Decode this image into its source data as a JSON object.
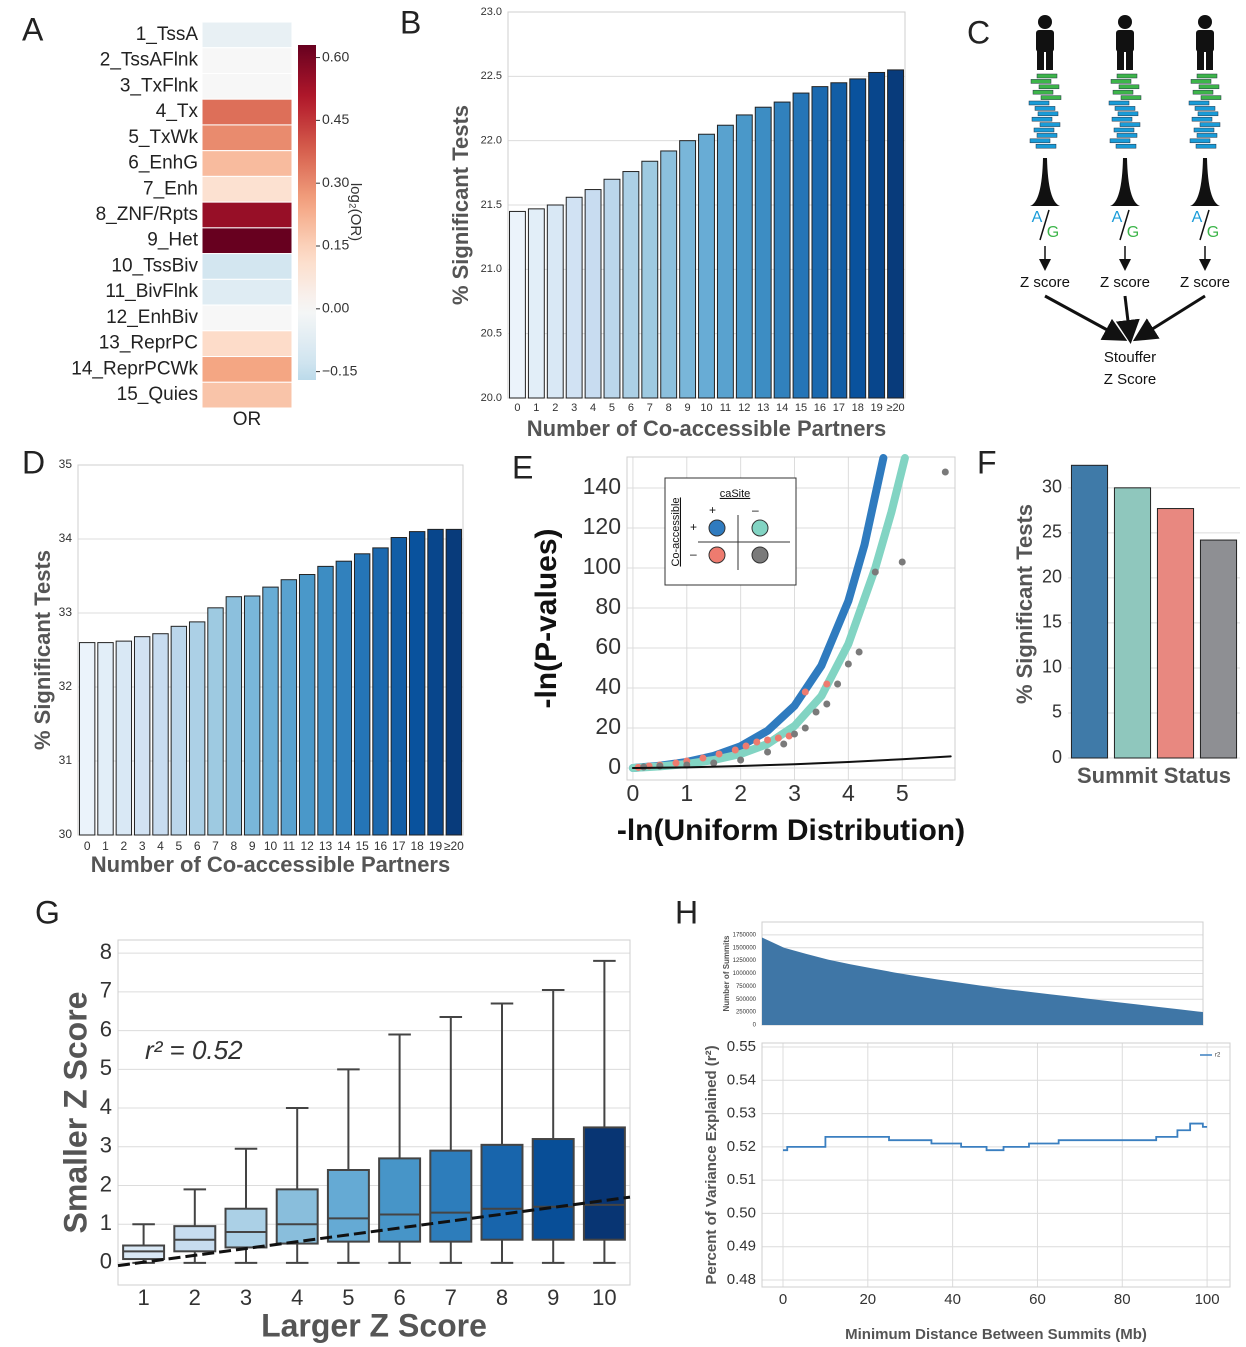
{
  "panel_labels": [
    "A",
    "B",
    "C",
    "D",
    "E",
    "F",
    "G",
    "H"
  ],
  "diagram": {
    "allele_1": "A",
    "allele_2": "G",
    "score_label": "Z score",
    "combined_label": [
      "Stouffer",
      "Z Score"
    ]
  },
  "chart_data": [
    {
      "type": "heatmap",
      "categories": [
        "1_TssA",
        "2_TssAFlnk",
        "3_TxFlnk",
        "4_Tx",
        "5_TxWk",
        "6_EnhG",
        "7_Enh",
        "8_ZNF/Rpts",
        "9_Het",
        "10_TssBiv",
        "11_BivFlnk",
        "12_EnhBiv",
        "13_ReprPC",
        "14_ReprPCWk",
        "15_Quies"
      ],
      "columns": [
        "OR"
      ],
      "values": [
        -0.05,
        0.0,
        0.0,
        0.35,
        0.3,
        0.2,
        0.1,
        0.55,
        0.65,
        -0.12,
        -0.08,
        0.0,
        0.12,
        0.25,
        0.18
      ],
      "colormap": "RdBu_r",
      "clim": [
        -0.17,
        0.63
      ],
      "cticks": [
        {
          "value": -0.15,
          "label": "−0.15"
        },
        {
          "value": 0,
          "label": "0.00"
        },
        0.15,
        {
          "value": 0.3,
          "label": "0.30"
        },
        0.45,
        {
          "value": 0.6,
          "label": "0.60"
        }
      ],
      "colorbar_label": "log₂(OR)"
    },
    {
      "type": "bar",
      "categories": [
        "0",
        "1",
        "2",
        "3",
        "4",
        "5",
        "6",
        "7",
        "8",
        "9",
        "10",
        "11",
        "12",
        "13",
        "14",
        "15",
        "16",
        "17",
        "18",
        "19",
        "≥20"
      ],
      "values": [
        21.45,
        21.47,
        21.5,
        21.56,
        21.62,
        21.7,
        21.76,
        21.84,
        21.92,
        22.0,
        22.05,
        22.12,
        22.2,
        22.26,
        22.3,
        22.37,
        22.42,
        22.45,
        22.48,
        22.53,
        22.55
      ],
      "colormap": "Blues",
      "ylim": [
        20,
        23
      ],
      "yticks": [
        {
          "value": 20,
          "label": "20.0"
        },
        20.5,
        {
          "value": 21,
          "label": "21.0"
        },
        21.5,
        {
          "value": 22,
          "label": "22.0"
        },
        22.5,
        {
          "value": 23,
          "label": "23.0"
        }
      ],
      "grid": true,
      "ylabel": "% Significant Tests",
      "xlabel": "Number of Co-accessible Partners"
    },
    {
      "type": "bar",
      "categories": [
        "0",
        "1",
        "2",
        "3",
        "4",
        "5",
        "6",
        "7",
        "8",
        "9",
        "10",
        "11",
        "12",
        "13",
        "14",
        "15",
        "16",
        "17",
        "18",
        "19",
        "≥20"
      ],
      "values": [
        32.6,
        32.6,
        32.62,
        32.68,
        32.72,
        32.82,
        32.88,
        33.07,
        33.22,
        33.23,
        33.35,
        33.45,
        33.52,
        33.63,
        33.7,
        33.8,
        33.88,
        34.02,
        34.1,
        34.13,
        34.13
      ],
      "colormap": "Blues",
      "ylim": [
        30,
        35
      ],
      "yticks": [
        30,
        31,
        32,
        33,
        34,
        35
      ],
      "grid": true,
      "ylabel": "% Significant Tests",
      "xlabel": "Number of Co-accessible Partners"
    },
    {
      "type": "scatter",
      "xlim": [
        -0.11,
        5.98
      ],
      "ylim": [
        -6,
        155.5
      ],
      "xticks": [
        0,
        1,
        2,
        3,
        4,
        5
      ],
      "yticks": [
        0,
        20,
        40,
        60,
        80,
        100,
        120,
        140
      ],
      "grid": true,
      "ylabel": "-ln(P-values)",
      "xlabel": "-ln(Uniform Distribution)",
      "legend": {
        "title_x": "caSite",
        "title_y": "Co-accessible",
        "x_labels": [
          "+",
          "–"
        ],
        "y_labels": [
          "+",
          "–"
        ]
      },
      "series": [
        {
          "color": "#2f7bbf",
          "mode": "lines",
          "linewidth": 8,
          "x": [
            0,
            0.5,
            1,
            1.5,
            2,
            2.5,
            3,
            3.5,
            4,
            4.3,
            4.65
          ],
          "values": [
            0,
            1.16,
            3.03,
            6.03,
            10.9,
            18.6,
            31.1,
            51.2,
            83.5,
            111.6,
            155
          ]
        },
        {
          "color": "#82d4c3",
          "mode": "lines",
          "linewidth": 8,
          "x": [
            0,
            0.5,
            1,
            1.5,
            2,
            2.5,
            3,
            3.5,
            4,
            4.5,
            4.8,
            5.05
          ],
          "values": [
            0,
            0.8,
            2,
            4,
            7,
            12,
            21,
            36,
            62,
            100,
            128,
            155
          ]
        },
        {
          "color": "#ee7b6f",
          "mode": "markers",
          "x": [
            0.1,
            0.3,
            0.5,
            0.8,
            1.0,
            1.3,
            1.6,
            1.9,
            2.1,
            2.3,
            2.5,
            2.7,
            2.9,
            3.2,
            3.6
          ],
          "values": [
            0.3,
            1,
            1.5,
            2.5,
            3.5,
            5,
            7,
            9,
            11,
            13,
            14,
            15,
            16,
            38,
            42
          ]
        },
        {
          "color": "#7a7a7a",
          "mode": "markers",
          "x": [
            0.2,
            0.5,
            1,
            1.5,
            2,
            2.5,
            2.8,
            3,
            3.2,
            3.4,
            3.6,
            3.8,
            4.0,
            4.2,
            4.5,
            5.0,
            5.8
          ],
          "values": [
            0.5,
            1,
            1.5,
            2.5,
            4,
            8,
            12,
            17,
            20,
            28,
            32,
            42,
            52,
            58,
            98,
            103,
            148
          ]
        },
        {
          "color": "#111111",
          "mode": "lines",
          "linewidth": 2,
          "x": [
            0,
            1,
            2,
            3,
            4,
            5,
            5.9
          ],
          "values": [
            0,
            0.3,
            1,
            1.9,
            3,
            4.4,
            5.8
          ]
        }
      ]
    },
    {
      "type": "bar",
      "categories": [
        null,
        null,
        null,
        null
      ],
      "values": [
        32.5,
        30,
        27.7,
        24.2
      ],
      "colors": [
        "#3f7aa8",
        "#8fc7bd",
        "#e88880",
        "#8e8f93"
      ],
      "ylim": [
        0,
        34.2
      ],
      "yticks": [
        0,
        5,
        10,
        15,
        20,
        25,
        30
      ],
      "grid": true,
      "ylabel": "% Significant Tests",
      "xlabel": "Summit Status"
    },
    {
      "type": "box",
      "categories": [
        1,
        2,
        3,
        4,
        5,
        6,
        7,
        8,
        9,
        10
      ],
      "whislo": [
        0,
        0,
        0,
        0,
        0,
        0,
        0,
        0,
        0,
        0
      ],
      "q1": [
        0.1,
        0.3,
        0.4,
        0.5,
        0.55,
        0.55,
        0.55,
        0.6,
        0.6,
        0.6
      ],
      "med": [
        0.3,
        0.6,
        0.8,
        1.0,
        1.15,
        1.25,
        1.3,
        1.4,
        1.45,
        1.5
      ],
      "q3": [
        0.45,
        0.95,
        1.4,
        1.9,
        2.4,
        2.7,
        2.9,
        3.05,
        3.2,
        3.5
      ],
      "whishi": [
        1.0,
        1.9,
        2.95,
        4.0,
        5.0,
        5.9,
        6.35,
        6.7,
        7.05,
        7.8
      ],
      "colormap": "Blues",
      "ylim": [
        -0.57,
        8.34
      ],
      "yticks": [
        0,
        1,
        2,
        3,
        4,
        5,
        6,
        7,
        8
      ],
      "grid": true,
      "fit": {
        "x": [
          0.5,
          10.5
        ],
        "y": [
          -0.07,
          1.7
        ]
      },
      "annotation": "r² = 0.52",
      "ylabel": "Smaller Z Score",
      "xlabel": "Larger Z Score"
    },
    {
      "type": "area",
      "color": "#3f76a6",
      "xlim": [
        0,
        100
      ],
      "ylim": [
        0,
        2000000
      ],
      "x": [
        0,
        5,
        10,
        15,
        20,
        25,
        30,
        35,
        40,
        45,
        50,
        55,
        60,
        65,
        70,
        75,
        80,
        85,
        90,
        95,
        100
      ],
      "values": [
        1700000,
        1500000,
        1380000,
        1270000,
        1180000,
        1100000,
        1020000,
        950000,
        880000,
        820000,
        760000,
        700000,
        650000,
        600000,
        550000,
        500000,
        450000,
        400000,
        350000,
        300000,
        250000
      ],
      "yticks": [
        0,
        250000,
        500000,
        750000,
        1000000,
        1250000,
        1500000,
        1750000
      ],
      "grid": true,
      "ylabel": "Number of Summits"
    },
    {
      "type": "line",
      "xlim": [
        -4.95,
        105.4
      ],
      "ylim": [
        0.4779,
        0.5512
      ],
      "xticks": [
        0,
        20,
        40,
        60,
        80,
        100
      ],
      "yticks": [
        0.48,
        0.49,
        {
          "value": 0.5,
          "label": "0.50"
        },
        0.51,
        0.52,
        0.53,
        0.54,
        0.55
      ],
      "grid": true,
      "ylabel": "Percent of Variance Explained (r²)",
      "xlabel": "Minimum Distance Between Summits (Mb)",
      "series": [
        {
          "name": "r2",
          "color": "#3a7fc0",
          "x": [
            0,
            1,
            1,
            10,
            10,
            25,
            25,
            35,
            35,
            42,
            42,
            48,
            48,
            52,
            52,
            58,
            58,
            65,
            65,
            88,
            88,
            93,
            93,
            96,
            96,
            99,
            99,
            100
          ],
          "values": [
            0.519,
            0.519,
            0.52,
            0.52,
            0.523,
            0.523,
            0.522,
            0.522,
            0.521,
            0.521,
            0.52,
            0.52,
            0.519,
            0.519,
            0.52,
            0.52,
            0.521,
            0.521,
            0.522,
            0.522,
            0.523,
            0.523,
            0.525,
            0.525,
            0.527,
            0.527,
            0.526,
            0.526
          ]
        }
      ]
    }
  ]
}
